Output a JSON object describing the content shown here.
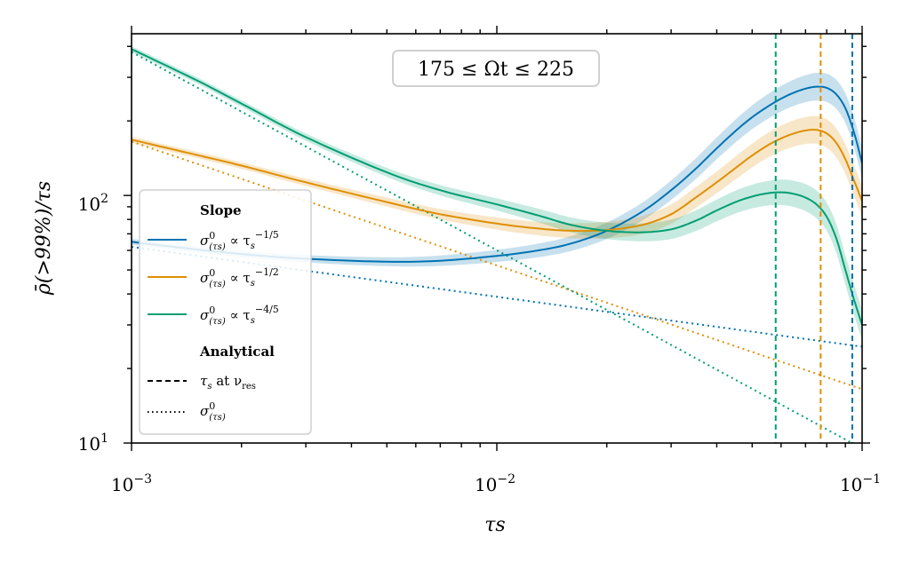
{
  "chart_data": {
    "type": "line",
    "annotation": "175 ≤ Ωt ≤ 225",
    "xlabel": "τs",
    "ylabel": "ρ̄(>99%)/τs",
    "xscale": "log",
    "yscale": "log",
    "xlim": [
      0.001,
      0.1
    ],
    "ylim": [
      10,
      450
    ],
    "x_tick_labels": [
      {
        "value": 0.001,
        "base": "10",
        "exp": "−3"
      },
      {
        "value": 0.01,
        "base": "10",
        "exp": "−2"
      },
      {
        "value": 0.1,
        "base": "10",
        "exp": "−1"
      }
    ],
    "y_tick_labels": [
      {
        "value": 10,
        "base": "10",
        "exp": "1"
      },
      {
        "value": 100,
        "base": "10",
        "exp": "2"
      }
    ],
    "colors": {
      "blue": "#0072b2",
      "orange": "#de8f05",
      "green": "#029e73"
    },
    "series": [
      {
        "name": "σ0(τs) ∝ τs^−1/5",
        "color": "#0072b2",
        "x": [
          0.001,
          0.0013,
          0.002,
          0.003,
          0.005,
          0.007,
          0.01,
          0.013,
          0.016,
          0.02,
          0.025,
          0.03,
          0.035,
          0.04,
          0.045,
          0.05,
          0.055,
          0.06,
          0.065,
          0.07,
          0.075,
          0.08,
          0.085,
          0.09,
          0.095,
          0.1
        ],
        "values": [
          65,
          62,
          58,
          55.5,
          54,
          54.5,
          57,
          60,
          64,
          72,
          86,
          105,
          128,
          155,
          182,
          207,
          228,
          246,
          260,
          270,
          275,
          272,
          256,
          225,
          180,
          135
        ],
        "analytical": {
          "x": [
            0.001,
            0.1
          ],
          "values": [
            62,
            24.5
          ]
        },
        "resonance_x": 0.094
      },
      {
        "name": "σ0(τs) ∝ τs^−1/2",
        "color": "#de8f05",
        "x": [
          0.001,
          0.0015,
          0.002,
          0.003,
          0.005,
          0.007,
          0.01,
          0.013,
          0.016,
          0.02,
          0.025,
          0.03,
          0.035,
          0.04,
          0.045,
          0.05,
          0.055,
          0.06,
          0.065,
          0.07,
          0.075,
          0.08,
          0.085,
          0.09,
          0.095,
          0.1
        ],
        "values": [
          168,
          146,
          132,
          113,
          94,
          84,
          77,
          73.5,
          72,
          72.5,
          76,
          84,
          98,
          113,
          129,
          145,
          159,
          170,
          178,
          183,
          184,
          178,
          163,
          140,
          115,
          95
        ],
        "analytical": {
          "x": [
            0.001,
            0.1
          ],
          "values": [
            165,
            16.5
          ]
        },
        "resonance_x": 0.077
      },
      {
        "name": "σ0(τs) ∝ τs^−4/5",
        "color": "#029e73",
        "x": [
          0.001,
          0.0015,
          0.002,
          0.003,
          0.005,
          0.007,
          0.01,
          0.013,
          0.016,
          0.02,
          0.025,
          0.03,
          0.035,
          0.04,
          0.045,
          0.05,
          0.055,
          0.06,
          0.065,
          0.07,
          0.075,
          0.08,
          0.085,
          0.09,
          0.095,
          0.1
        ],
        "values": [
          390,
          293,
          235,
          172,
          124,
          105,
          92,
          83,
          76,
          72,
          71,
          73,
          79,
          87,
          94,
          99,
          102,
          103,
          101.5,
          98,
          92,
          82,
          67,
          50,
          38,
          30
        ],
        "analytical": {
          "x": [
            0.001,
            0.1
          ],
          "values": [
            380,
            9.5
          ]
        },
        "resonance_x": 0.058
      }
    ]
  },
  "legend": {
    "slope_header": "Slope",
    "analytical_header": "Analytical",
    "entries": [
      {
        "sigma": "σ",
        "sup": "0",
        "sub": "(τs)",
        "rel": " ∝ τ",
        "rsub": "s",
        "rexp": "−1/5"
      },
      {
        "sigma": "σ",
        "sup": "0",
        "sub": "(τs)",
        "rel": " ∝ τ",
        "rsub": "s",
        "rexp": "−1/2"
      },
      {
        "sigma": "σ",
        "sup": "0",
        "sub": "(τs)",
        "rel": " ∝ τ",
        "rsub": "s",
        "rexp": "−4/5"
      }
    ],
    "dashed_label_a": "τ",
    "dashed_label_sub": "s",
    "dashed_label_b": " at ν",
    "dashed_label_res": "res",
    "dotted_sigma": "σ",
    "dotted_sup": "0",
    "dotted_sub": "(τs)"
  }
}
